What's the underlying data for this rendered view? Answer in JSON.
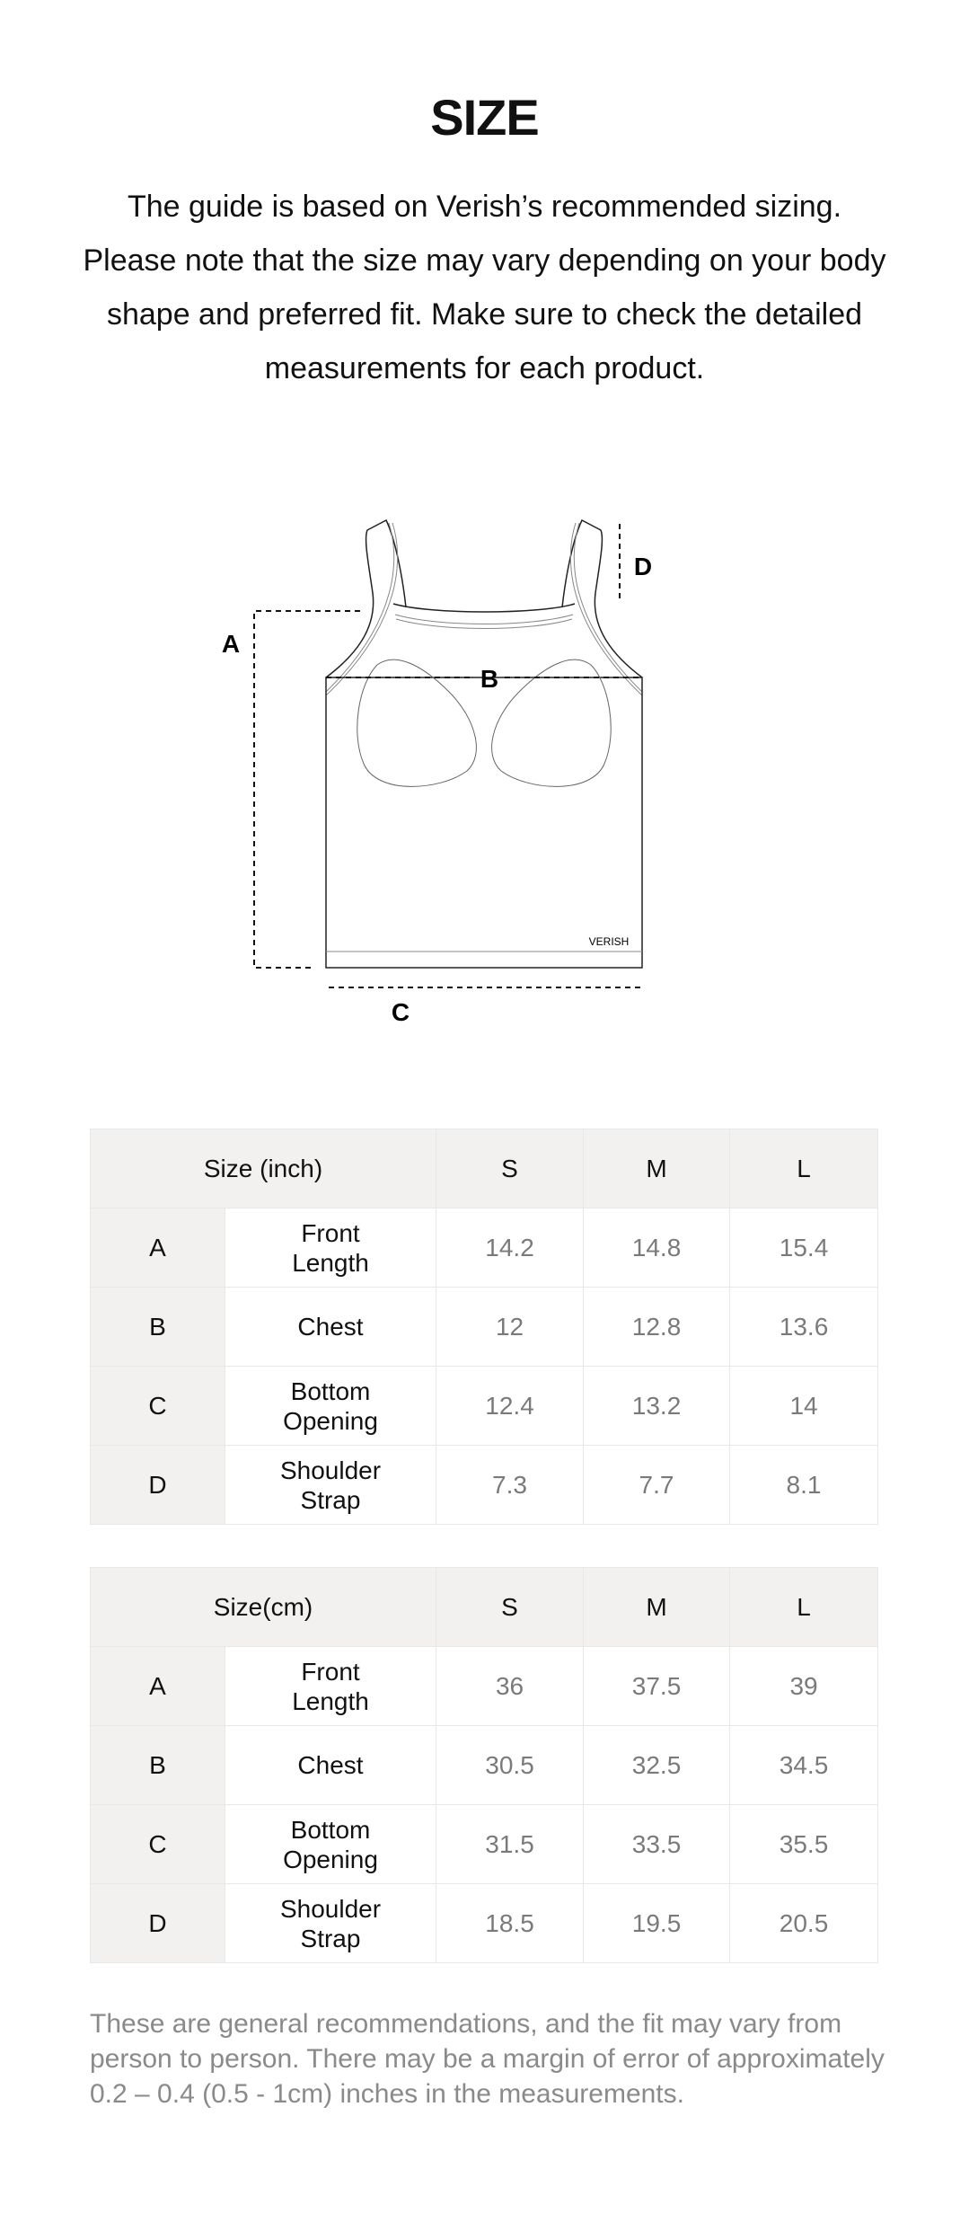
{
  "title": "SIZE",
  "intro": "The guide is based on Verish’s recommended sizing. Please note that the size may vary depending on your body shape and preferred fit. Make sure to check the detailed measurements for each product.",
  "diagram": {
    "labels": {
      "A": "A",
      "B": "B",
      "C": "C",
      "D": "D"
    },
    "brand": "VERISH"
  },
  "tables": [
    {
      "header": "Size (inch)",
      "sizes": [
        "S",
        "M",
        "L"
      ],
      "rows": [
        {
          "key": "A",
          "label": "Front Length",
          "values": [
            "14.2",
            "14.8",
            "15.4"
          ]
        },
        {
          "key": "B",
          "label": "Chest",
          "values": [
            "12",
            "12.8",
            "13.6"
          ]
        },
        {
          "key": "C",
          "label": "Bottom Opening",
          "values": [
            "12.4",
            "13.2",
            "14"
          ]
        },
        {
          "key": "D",
          "label": "Shoulder Strap",
          "values": [
            "7.3",
            "7.7",
            "8.1"
          ]
        }
      ]
    },
    {
      "header": "Size(cm)",
      "sizes": [
        "S",
        "M",
        "L"
      ],
      "rows": [
        {
          "key": "A",
          "label": "Front Length",
          "values": [
            "36",
            "37.5",
            "39"
          ]
        },
        {
          "key": "B",
          "label": "Chest",
          "values": [
            "30.5",
            "32.5",
            "34.5"
          ]
        },
        {
          "key": "C",
          "label": "Bottom Opening",
          "values": [
            "31.5",
            "33.5",
            "35.5"
          ]
        },
        {
          "key": "D",
          "label": "Shoulder Strap",
          "values": [
            "18.5",
            "19.5",
            "20.5"
          ]
        }
      ]
    }
  ],
  "note": "These are general recommendations, and the fit may vary from person to person. There may be a margin of error of approximately 0.2 – 0.4 (0.5 - 1cm) inches in the measurements.",
  "colors": {
    "header_bg": "#f2f1ef",
    "value_text": "#7a7a7a",
    "note_text": "#8a8a8a"
  }
}
